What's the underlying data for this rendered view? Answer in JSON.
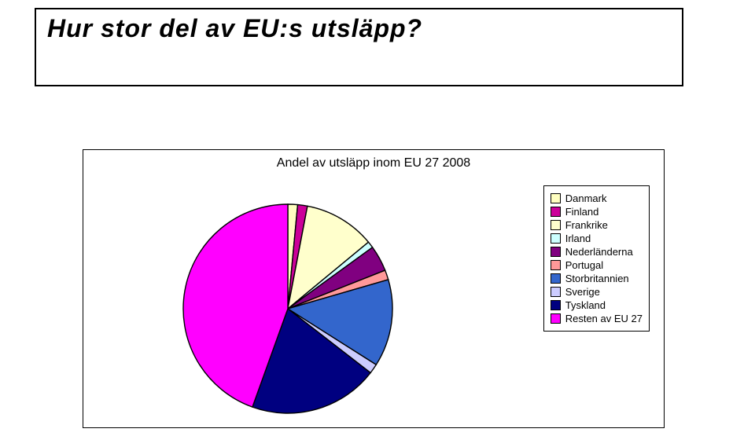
{
  "title": "Hur stor del av EU:s utsläpp?",
  "title_fontsize": 32,
  "chart": {
    "type": "pie",
    "caption": "Andel av utsläpp inom EU 27 2008",
    "caption_fontsize": 16,
    "legend_fontsize": 13,
    "background_color": "#ffffff",
    "border_color": "#000000",
    "pie_stroke": "#000000",
    "pie_stroke_width": 1,
    "legend_border_color": "#000000",
    "series": [
      {
        "label": "Danmark",
        "value": 1.5,
        "color": "#ffffc0"
      },
      {
        "label": "Finland",
        "value": 1.5,
        "color": "#cc0099"
      },
      {
        "label": "Frankrike",
        "value": 11.0,
        "color": "#ffffcc"
      },
      {
        "label": "Irland",
        "value": 1.0,
        "color": "#ccffff"
      },
      {
        "label": "Nederländerna",
        "value": 4.0,
        "color": "#800080"
      },
      {
        "label": "Portugal",
        "value": 1.5,
        "color": "#ff9999"
      },
      {
        "label": "Storbritannien",
        "value": 13.5,
        "color": "#3366cc"
      },
      {
        "label": "Sverige",
        "value": 1.5,
        "color": "#ccccff"
      },
      {
        "label": "Tyskland",
        "value": 20.0,
        "color": "#000080"
      },
      {
        "label": "Resten av EU 27",
        "value": 44.5,
        "color": "#ff00ff"
      }
    ]
  }
}
